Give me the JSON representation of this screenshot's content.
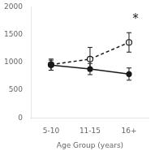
{
  "chart_data": {
    "type": "line",
    "xlabel": "Age Group (years)",
    "categories": [
      "5-10",
      "11-15",
      "16+"
    ],
    "series": [
      {
        "values": [
          950,
          880,
          790
        ],
        "errors": [
          90,
          100,
          110
        ],
        "color": "#1a1a1a",
        "line_style": "solid",
        "marker": "circle"
      },
      {
        "values": [
          960,
          1060,
          1360
        ],
        "errors": [
          100,
          210,
          175
        ],
        "color": "#1a1a1a",
        "line_style": "dashed",
        "marker": "open_circle"
      }
    ],
    "ylim": [
      0,
      2000
    ],
    "yticks": [
      0,
      500,
      1000,
      1500,
      2000
    ],
    "grid": false,
    "annotations": [
      {
        "text": "*",
        "x": "16+",
        "y": 1820
      }
    ]
  }
}
